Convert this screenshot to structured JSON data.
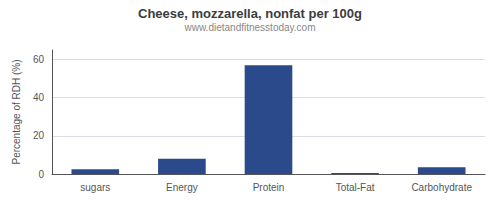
{
  "chart_data": {
    "type": "bar",
    "title": "Cheese, mozzarella, nonfat per 100g",
    "subtitle": "www.dietandfitnesstoday.com",
    "categories": [
      "sugars",
      "Energy",
      "Protein",
      "Total-Fat",
      "Carbohydrate"
    ],
    "values": [
      2.5,
      8.0,
      57.0,
      0.5,
      3.5
    ],
    "color": "#2b4a8b",
    "ylabel": "Percentage of RDH (%)",
    "ylim": [
      0,
      65
    ],
    "yticks": [
      0,
      20,
      40,
      60
    ],
    "grid": true
  }
}
